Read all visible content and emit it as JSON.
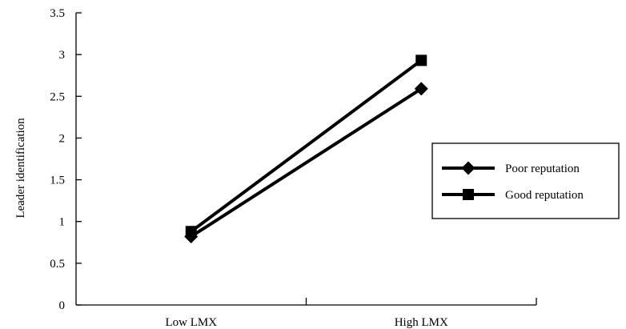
{
  "chart_data": {
    "type": "line",
    "title": "",
    "xlabel": "",
    "ylabel": "Leader identification",
    "categories": [
      "Low LMX",
      "High LMX"
    ],
    "ylim": [
      0,
      3.5
    ],
    "yticks": [
      "0",
      "0.5",
      "1",
      "1.5",
      "2",
      "2.5",
      "3",
      "3.5"
    ],
    "grid": false,
    "legend_position": "right",
    "series": [
      {
        "name": "Poor reputation",
        "marker": "diamond",
        "values": [
          0.82,
          2.59
        ]
      },
      {
        "name": "Good reputation",
        "marker": "square",
        "values": [
          0.88,
          2.93
        ]
      }
    ]
  }
}
